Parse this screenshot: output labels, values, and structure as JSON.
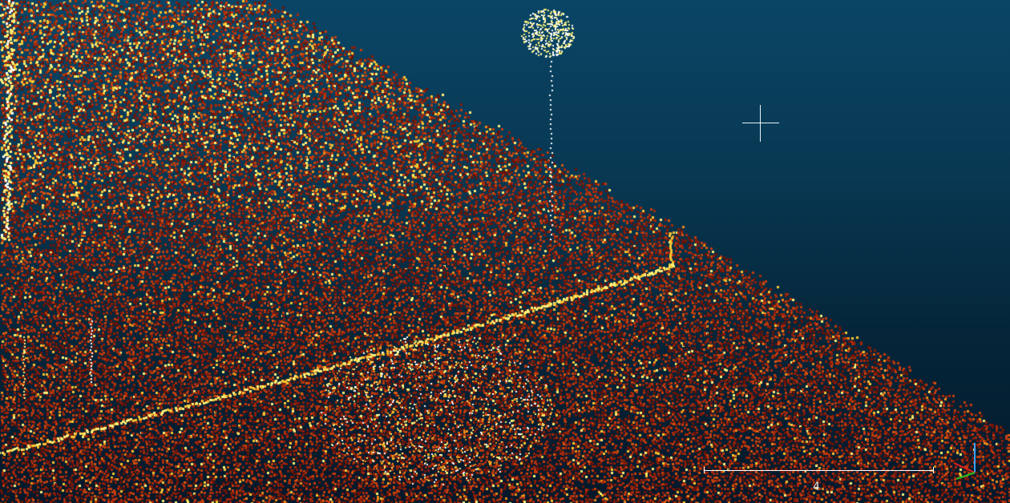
{
  "viewport": {
    "background_top": "#0a4566",
    "background_bottom": "#03182a"
  },
  "point_cloud": {
    "palette": [
      "#6e1306",
      "#8a1c07",
      "#a8290a",
      "#c23c0c",
      "#d9560f",
      "#ec8c1a",
      "#f6c533",
      "#fbf07a",
      "#ffffff"
    ]
  },
  "scale_bar": {
    "label": "4"
  },
  "axis_gizmo": {
    "x_color": "#e02020",
    "y_color": "#20c020",
    "z_color": "#3aa0ff"
  },
  "cursor": {
    "icon": "crosshair-cursor-icon"
  }
}
